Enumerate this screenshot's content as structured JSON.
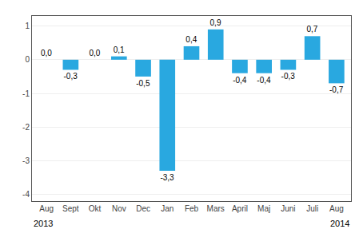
{
  "chart_data": {
    "type": "bar",
    "categories": [
      "Aug",
      "Sept",
      "Okt",
      "Nov",
      "Dec",
      "Jan",
      "Feb",
      "Mars",
      "April",
      "Maj",
      "Juni",
      "Juli",
      "Aug"
    ],
    "values": [
      0.0,
      -0.3,
      0.0,
      0.1,
      -0.5,
      -3.3,
      0.4,
      0.9,
      -0.4,
      -0.4,
      -0.3,
      0.7,
      -0.7
    ],
    "value_labels": [
      "0,0",
      "-0,3",
      "0,0",
      "0,1",
      "-0,5",
      "-3,3",
      "0,4",
      "0,9",
      "-0,4",
      "-0,4",
      "-0,3",
      "0,7",
      "-0,7"
    ],
    "data_labels": true,
    "color": "#29a8e0",
    "ylim": [
      -4.2,
      1.3
    ],
    "yticks": [
      -4,
      -3,
      -2,
      -1,
      0,
      1
    ],
    "grid": true,
    "annotations": [
      "2013",
      "2014"
    ]
  }
}
